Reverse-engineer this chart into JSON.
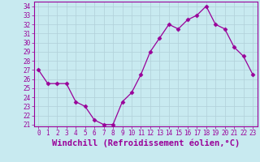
{
  "x": [
    0,
    1,
    2,
    3,
    4,
    5,
    6,
    7,
    8,
    9,
    10,
    11,
    12,
    13,
    14,
    15,
    16,
    17,
    18,
    19,
    20,
    21,
    22,
    23
  ],
  "y": [
    27,
    25.5,
    25.5,
    25.5,
    23.5,
    23,
    21.5,
    21,
    21,
    23.5,
    24.5,
    26.5,
    29,
    30.5,
    32,
    31.5,
    32.5,
    33,
    34,
    32,
    31.5,
    29.5,
    28.5,
    26.5
  ],
  "line_color": "#990099",
  "marker": "D",
  "marker_size": 2.5,
  "bg_color": "#c8eaf0",
  "grid_color": "#b0d0d8",
  "tick_color": "#990099",
  "label_color": "#990099",
  "xlabel": "Windchill (Refroidissement éolien,°C)",
  "ylabel_ticks": [
    21,
    22,
    23,
    24,
    25,
    26,
    27,
    28,
    29,
    30,
    31,
    32,
    33,
    34
  ],
  "ylim": [
    20.8,
    34.5
  ],
  "xlim": [
    -0.5,
    23.5
  ],
  "xticks": [
    0,
    1,
    2,
    3,
    4,
    5,
    6,
    7,
    8,
    9,
    10,
    11,
    12,
    13,
    14,
    15,
    16,
    17,
    18,
    19,
    20,
    21,
    22,
    23
  ],
  "tick_fontsize": 5.5,
  "xlabel_fontsize": 7.5
}
